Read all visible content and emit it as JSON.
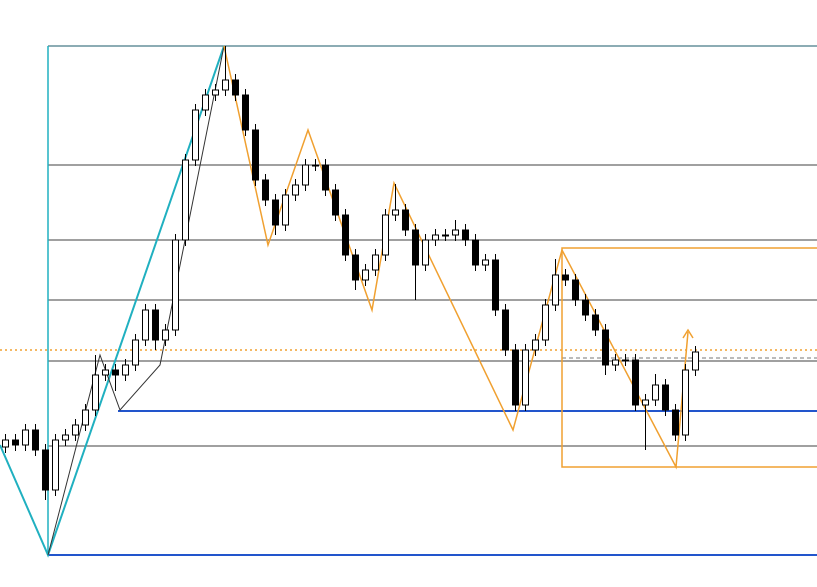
{
  "chart_data": {
    "type": "candlestick",
    "ylim": [
      0,
      587
    ],
    "up_color": "#ffffff",
    "down_color": "#000000",
    "candles": [
      [
        140,
        153,
        134,
        147
      ],
      [
        147,
        153,
        136,
        142
      ],
      [
        142,
        163,
        136,
        157
      ],
      [
        157,
        163,
        131,
        137
      ],
      [
        137,
        143,
        87,
        97
      ],
      [
        97,
        153,
        91,
        147
      ],
      [
        147,
        158,
        141,
        152
      ],
      [
        152,
        168,
        146,
        162
      ],
      [
        162,
        183,
        156,
        177
      ],
      [
        177,
        232,
        171,
        212
      ],
      [
        212,
        223,
        206,
        217
      ],
      [
        217,
        223,
        196,
        212
      ],
      [
        212,
        228,
        206,
        222
      ],
      [
        222,
        253,
        216,
        247
      ],
      [
        247,
        283,
        241,
        277
      ],
      [
        277,
        283,
        237,
        247
      ],
      [
        247,
        263,
        241,
        257
      ],
      [
        257,
        353,
        251,
        347
      ],
      [
        347,
        433,
        341,
        427
      ],
      [
        427,
        483,
        421,
        477
      ],
      [
        477,
        498,
        471,
        492
      ],
      [
        492,
        503,
        486,
        497
      ],
      [
        497,
        541,
        491,
        507
      ],
      [
        507,
        513,
        486,
        492
      ],
      [
        492,
        498,
        451,
        457
      ],
      [
        457,
        463,
        401,
        407
      ],
      [
        407,
        413,
        381,
        387
      ],
      [
        387,
        393,
        352,
        362
      ],
      [
        362,
        398,
        356,
        392
      ],
      [
        392,
        408,
        386,
        402
      ],
      [
        402,
        428,
        396,
        422
      ],
      [
        422,
        428,
        416,
        422
      ],
      [
        422,
        428,
        391,
        397
      ],
      [
        397,
        403,
        366,
        372
      ],
      [
        372,
        378,
        326,
        332
      ],
      [
        332,
        338,
        297,
        307
      ],
      [
        307,
        323,
        301,
        317
      ],
      [
        317,
        338,
        311,
        332
      ],
      [
        332,
        378,
        326,
        372
      ],
      [
        372,
        403,
        366,
        377
      ],
      [
        377,
        383,
        351,
        357
      ],
      [
        357,
        363,
        287,
        322
      ],
      [
        322,
        353,
        316,
        347
      ],
      [
        347,
        358,
        341,
        352
      ],
      [
        352,
        358,
        346,
        352
      ],
      [
        352,
        367,
        346,
        357
      ],
      [
        357,
        363,
        341,
        347
      ],
      [
        347,
        353,
        316,
        322
      ],
      [
        322,
        333,
        316,
        327
      ],
      [
        327,
        333,
        271,
        277
      ],
      [
        277,
        283,
        231,
        237
      ],
      [
        237,
        243,
        176,
        182
      ],
      [
        182,
        243,
        176,
        237
      ],
      [
        237,
        253,
        231,
        247
      ],
      [
        247,
        288,
        241,
        282
      ],
      [
        282,
        328,
        276,
        312
      ],
      [
        312,
        318,
        301,
        307
      ],
      [
        307,
        313,
        281,
        287
      ],
      [
        287,
        293,
        266,
        272
      ],
      [
        272,
        278,
        251,
        257
      ],
      [
        257,
        263,
        212,
        222
      ],
      [
        222,
        233,
        216,
        227
      ],
      [
        227,
        233,
        221,
        227
      ],
      [
        227,
        233,
        176,
        182
      ],
      [
        182,
        193,
        137,
        187
      ],
      [
        187,
        213,
        181,
        202
      ],
      [
        202,
        208,
        171,
        177
      ],
      [
        177,
        183,
        146,
        152
      ],
      [
        152,
        223,
        146,
        217
      ],
      [
        217,
        241,
        211,
        235
      ]
    ]
  }
}
